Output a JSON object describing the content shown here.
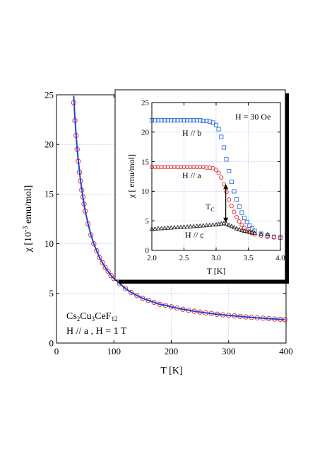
{
  "chart_data": [
    {
      "type": "scatter",
      "xlabel_main": "T [K]",
      "ylabel_main_prefix": "χ [10",
      "ylabel_main_exp": "-3",
      "ylabel_main_suffix": " emu/mol]",
      "xlim": [
        0,
        400
      ],
      "ylim": [
        0,
        25
      ],
      "xticks": [
        "0",
        "100",
        "200",
        "300",
        "400"
      ],
      "yticks": [
        "0",
        "5",
        "10",
        "15",
        "20",
        "25"
      ],
      "grid": true,
      "annotation": {
        "formula_parts": [
          "Cs",
          "2",
          "Cu",
          "3",
          "CeF",
          "12"
        ],
        "condition": "H // a , H = 1 T"
      },
      "series": [
        {
          "color": "#e8262b",
          "marker": "circle",
          "x": [
            30,
            32,
            34,
            36,
            38,
            40,
            42,
            44,
            46,
            48,
            50,
            55,
            60,
            65,
            70,
            75,
            80,
            85,
            90,
            95,
            100,
            110,
            120,
            130,
            140,
            150,
            160,
            170,
            180,
            190,
            200,
            210,
            220,
            230,
            240,
            250,
            260,
            270,
            280,
            290,
            300,
            310,
            320,
            330,
            340,
            350,
            360,
            370,
            380,
            390,
            398
          ],
          "y": [
            24.2,
            22.4,
            20.9,
            19.5,
            18.3,
            17.2,
            16.3,
            15.4,
            14.7,
            14.0,
            13.3,
            12.0,
            10.9,
            10.0,
            9.3,
            8.6,
            8.1,
            7.6,
            7.2,
            6.8,
            6.5,
            6.0,
            5.5,
            5.1,
            4.8,
            4.5,
            4.3,
            4.1,
            3.9,
            3.8,
            3.65,
            3.52,
            3.4,
            3.3,
            3.2,
            3.12,
            3.04,
            2.97,
            2.9,
            2.84,
            2.78,
            2.73,
            2.68,
            2.63,
            2.58,
            2.54,
            2.5,
            2.46,
            2.42,
            2.39,
            2.36
          ]
        },
        {
          "color": "#1d43d8",
          "marker": "line",
          "x": [
            30,
            32,
            34,
            36,
            38,
            40,
            42,
            44,
            46,
            48,
            50,
            55,
            60,
            65,
            70,
            75,
            80,
            85,
            90,
            95,
            100,
            110,
            120,
            130,
            140,
            150,
            160,
            170,
            180,
            190,
            200,
            210,
            220,
            230,
            240,
            250,
            260,
            270,
            280,
            290,
            300,
            310,
            320,
            330,
            340,
            350,
            360,
            370,
            380,
            390,
            398
          ],
          "y": [
            24.9,
            22.8,
            21.1,
            19.6,
            18.4,
            17.3,
            16.3,
            15.5,
            14.7,
            14.0,
            13.3,
            12.0,
            10.9,
            10.0,
            9.3,
            8.6,
            8.1,
            7.6,
            7.2,
            6.8,
            6.5,
            6.0,
            5.5,
            5.1,
            4.8,
            4.5,
            4.3,
            4.1,
            3.9,
            3.8,
            3.65,
            3.52,
            3.4,
            3.3,
            3.2,
            3.12,
            3.04,
            2.97,
            2.9,
            2.84,
            2.78,
            2.73,
            2.68,
            2.63,
            2.58,
            2.54,
            2.5,
            2.46,
            2.42,
            2.39,
            2.36
          ]
        }
      ]
    },
    {
      "type": "scatter",
      "xlabel": "T [K]",
      "ylabel": "χ [ emu/mol]",
      "xlim": [
        2.0,
        4.0
      ],
      "ylim": [
        0,
        25
      ],
      "xticks": [
        "2.0",
        "2.5",
        "3.0",
        "3.5",
        "4.0"
      ],
      "yticks": [
        "0",
        "5",
        "10",
        "15",
        "20",
        "25"
      ],
      "grid": true,
      "field_label": "H = 30 Oe",
      "tc_label_main": "T",
      "tc_label_sub": "C",
      "tc_arrow_x": 3.15,
      "tc_arrow_y": [
        4.7,
        11.2
      ],
      "series": [
        {
          "name": "H // b",
          "color": "#2f6fe0",
          "marker": "square",
          "x": [
            2.0,
            2.05,
            2.1,
            2.15,
            2.2,
            2.25,
            2.3,
            2.35,
            2.4,
            2.45,
            2.5,
            2.55,
            2.6,
            2.65,
            2.7,
            2.75,
            2.8,
            2.85,
            2.9,
            2.95,
            3.0,
            3.04,
            3.08,
            3.12,
            3.16,
            3.2,
            3.24,
            3.28,
            3.32,
            3.36,
            3.4,
            3.44,
            3.48,
            3.52,
            3.56,
            3.6,
            3.7,
            3.8,
            3.9,
            4.0
          ],
          "y": [
            22.0,
            22.0,
            22.0,
            22.0,
            22.0,
            22.0,
            22.0,
            22.0,
            22.0,
            22.0,
            22.0,
            22.0,
            22.0,
            22.0,
            22.0,
            22.0,
            21.9,
            21.9,
            21.8,
            21.6,
            21.2,
            20.5,
            19.2,
            17.4,
            15.4,
            13.4,
            11.6,
            10.0,
            8.6,
            7.4,
            6.4,
            5.5,
            4.8,
            4.2,
            3.7,
            3.3,
            2.8,
            2.5,
            2.3,
            2.2
          ]
        },
        {
          "name": "H // a",
          "color": "#e8262b",
          "marker": "circle",
          "x": [
            2.0,
            2.05,
            2.1,
            2.15,
            2.2,
            2.25,
            2.3,
            2.35,
            2.4,
            2.45,
            2.5,
            2.55,
            2.6,
            2.65,
            2.7,
            2.75,
            2.8,
            2.85,
            2.9,
            2.95,
            3.0,
            3.04,
            3.08,
            3.12,
            3.16,
            3.2,
            3.24,
            3.28,
            3.32,
            3.36,
            3.4,
            3.44,
            3.48,
            3.52,
            3.56,
            3.6,
            3.7,
            3.8,
            3.9,
            4.0
          ],
          "y": [
            14.1,
            14.1,
            14.1,
            14.1,
            14.1,
            14.1,
            14.1,
            14.1,
            14.1,
            14.1,
            14.1,
            14.1,
            14.1,
            14.1,
            14.1,
            14.1,
            14.1,
            14.0,
            14.0,
            13.9,
            13.6,
            13.1,
            12.3,
            11.2,
            9.9,
            8.6,
            7.5,
            6.5,
            5.6,
            4.9,
            4.3,
            3.8,
            3.4,
            3.1,
            2.9,
            2.7,
            2.5,
            2.3,
            2.2,
            2.1
          ]
        },
        {
          "name": "H // c",
          "color": "#222222",
          "marker": "triangle",
          "x": [
            2.0,
            2.05,
            2.1,
            2.15,
            2.2,
            2.25,
            2.3,
            2.35,
            2.4,
            2.45,
            2.5,
            2.55,
            2.6,
            2.65,
            2.7,
            2.75,
            2.8,
            2.85,
            2.9,
            2.95,
            3.0,
            3.04,
            3.08,
            3.12,
            3.16,
            3.2,
            3.24,
            3.28,
            3.32,
            3.36,
            3.4,
            3.44,
            3.48,
            3.52,
            3.56,
            3.6,
            3.7,
            3.8
          ],
          "y": [
            3.6,
            3.65,
            3.7,
            3.72,
            3.76,
            3.8,
            3.83,
            3.87,
            3.9,
            3.94,
            3.97,
            4.0,
            4.04,
            4.08,
            4.12,
            4.16,
            4.2,
            4.24,
            4.29,
            4.34,
            4.39,
            4.45,
            4.52,
            4.58,
            4.5,
            4.3,
            4.1,
            3.9,
            3.7,
            3.55,
            3.4,
            3.3,
            3.2,
            3.1,
            3.0,
            2.95,
            2.8,
            2.7
          ]
        }
      ]
    }
  ]
}
